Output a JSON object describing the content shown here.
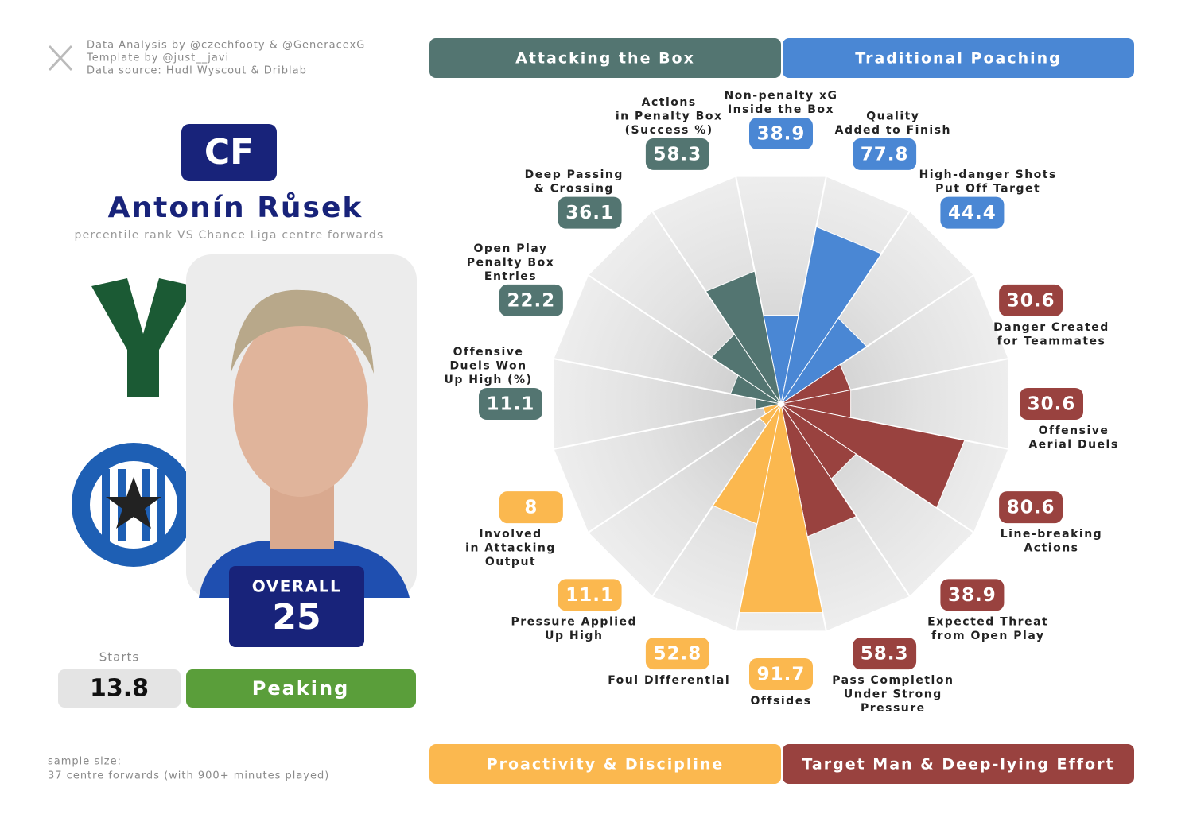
{
  "credits": [
    "Data Analysis by @czechfooty & @GeneracexG",
    "Template by @just__javi",
    "Data source: Hudl Wyscout & Driblab"
  ],
  "profile": {
    "position": "CF",
    "name": "Antonín Růsek",
    "subtitle": "percentile rank VS Chance Liga centre forwards",
    "overall_label": "OVERALL",
    "overall": 25,
    "starts_label": "Starts",
    "starts": 13.8,
    "status": "Peaking"
  },
  "sample": [
    "sample size:",
    "37 centre forwards (with 900+ minutes played)"
  ],
  "chart_data": {
    "type": "pizza",
    "ylim": [
      0,
      100
    ],
    "series": [
      {
        "name": "Traditional Poaching",
        "color": "#4a87d4",
        "categories": [
          [
            "Non-penalty xG",
            "Inside the Box"
          ],
          [
            "Quality",
            "Added to Finish"
          ],
          [
            "High-danger Shots",
            "Put Off Target"
          ]
        ],
        "values": [
          38.9,
          77.8,
          44.4
        ]
      },
      {
        "name": "Target Man & Deep-lying Effort",
        "color": "#99423f",
        "categories": [
          [
            "Danger Created",
            "for Teammates"
          ],
          [
            "Offensive",
            "Aerial Duels"
          ],
          [
            "Line-breaking",
            "Actions"
          ],
          [
            "Expected Threat",
            "from Open Play"
          ],
          [
            "Pass Completion",
            "Under Strong",
            "Pressure"
          ]
        ],
        "values": [
          30.6,
          30.6,
          80.6,
          38.9,
          58.3
        ]
      },
      {
        "name": "Proactivity & Discipline",
        "color": "#fbb84f",
        "categories": [
          [
            "Offsides"
          ],
          [
            "Foul Differential"
          ],
          [
            "Pressure Applied",
            "Up High"
          ],
          [
            "Involved",
            "in Attacking",
            "Output"
          ]
        ],
        "values": [
          91.7,
          52.8,
          11.1,
          8
        ]
      },
      {
        "name": "Attacking the Box",
        "color": "#537571",
        "categories": [
          [
            "Offensive",
            "Duels Won",
            "Up High (%)"
          ],
          [
            "Open Play",
            "Penalty Box",
            "Entries"
          ],
          [
            "Deep Passing",
            "& Crossing"
          ],
          [
            "Actions",
            "in Penalty Box",
            "(Success %)"
          ]
        ],
        "values": [
          11.1,
          22.2,
          36.1,
          58.3
        ]
      }
    ]
  }
}
